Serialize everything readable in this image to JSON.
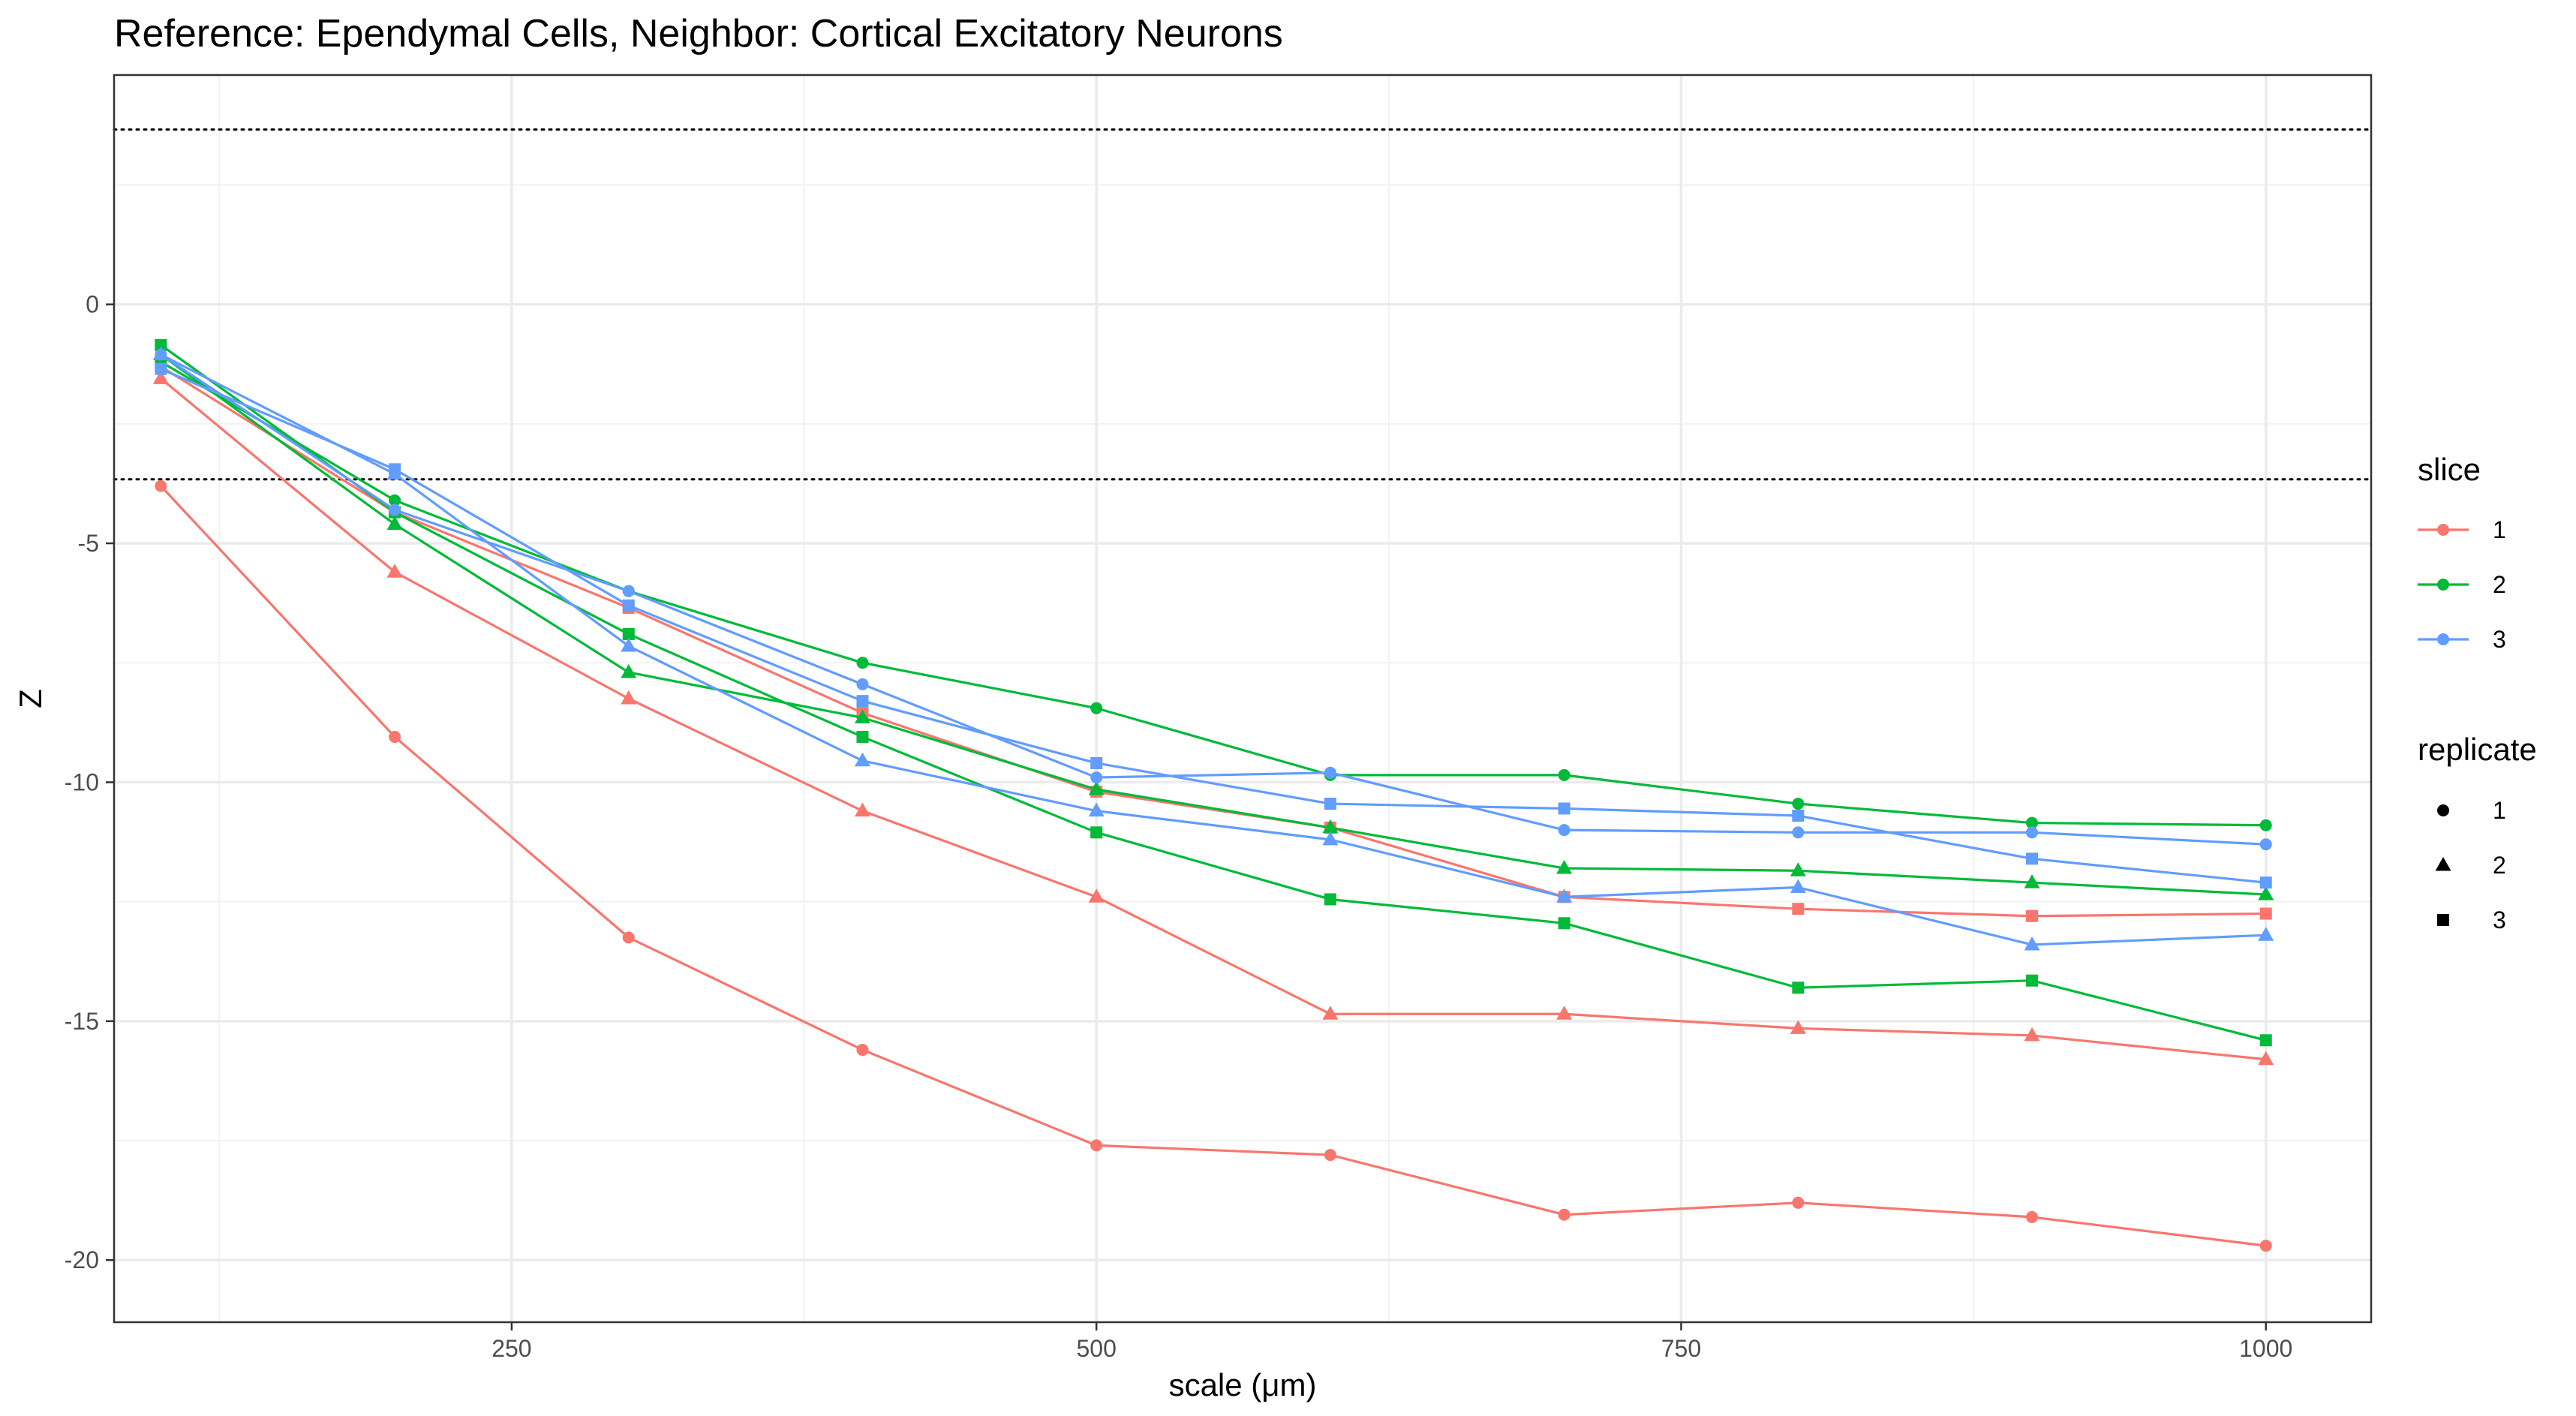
{
  "chart_data": {
    "type": "line",
    "title": "Reference: Ependymal Cells, Neighbor: Cortical Excitatory Neurons",
    "xlabel": "scale (μm)",
    "ylabel": "Z",
    "xlim": [
      80,
      1045
    ],
    "ylim": [
      -21.3,
      4.8
    ],
    "x_ticks": [
      250,
      500,
      750,
      1000
    ],
    "x_tick_labels": [
      "250",
      "500",
      "750",
      "1000"
    ],
    "y_ticks": [
      0,
      -5,
      -10,
      -15,
      -20
    ],
    "y_tick_labels": [
      "0",
      "-5",
      "-10",
      "-15",
      "-20"
    ],
    "reference_lines": [
      3.66,
      -3.66
    ],
    "grid": true,
    "legend_position": "right",
    "legends": [
      {
        "title": "slice",
        "items": [
          {
            "label": "1",
            "color": "#F8766D"
          },
          {
            "label": "2",
            "color": "#00BA38"
          },
          {
            "label": "3",
            "color": "#619CFF"
          }
        ]
      },
      {
        "title": "replicate",
        "items": [
          {
            "label": "1",
            "shape": "circle"
          },
          {
            "label": "2",
            "shape": "triangle"
          },
          {
            "label": "3",
            "shape": "square"
          }
        ]
      }
    ],
    "x": [
      100,
      200,
      300,
      400,
      500,
      600,
      700,
      800,
      900,
      1000
    ],
    "series": [
      {
        "slice": "1",
        "replicate": "1",
        "color": "#F8766D",
        "shape": "circle",
        "values": [
          -3.8,
          -9.05,
          -13.25,
          -15.6,
          -17.6,
          -17.8,
          -19.05,
          -18.8,
          -19.1,
          -19.7
        ]
      },
      {
        "slice": "1",
        "replicate": "2",
        "color": "#F8766D",
        "shape": "triangle",
        "values": [
          -1.55,
          -5.6,
          -8.25,
          -10.6,
          -12.4,
          -14.85,
          -14.85,
          -15.15,
          -15.3,
          -15.8
        ]
      },
      {
        "slice": "1",
        "replicate": "3",
        "color": "#F8766D",
        "shape": "square",
        "values": [
          -1.3,
          -4.35,
          -6.35,
          -8.55,
          -10.2,
          -10.95,
          -12.4,
          -12.65,
          -12.8,
          -12.75
        ]
      },
      {
        "slice": "2",
        "replicate": "1",
        "color": "#00BA38",
        "shape": "circle",
        "values": [
          -1.2,
          -4.1,
          -6.0,
          -7.5,
          -8.45,
          -9.85,
          -9.85,
          -10.45,
          -10.85,
          -10.9
        ]
      },
      {
        "slice": "2",
        "replicate": "2",
        "color": "#00BA38",
        "shape": "triangle",
        "values": [
          -1.05,
          -4.6,
          -7.7,
          -8.65,
          -10.15,
          -10.95,
          -11.8,
          -11.85,
          -12.1,
          -12.35
        ]
      },
      {
        "slice": "2",
        "replicate": "3",
        "color": "#00BA38",
        "shape": "square",
        "values": [
          -0.85,
          -4.35,
          -6.9,
          -9.05,
          -11.05,
          -12.45,
          -12.95,
          -14.3,
          -14.15,
          -15.4
        ]
      },
      {
        "slice": "3",
        "replicate": "1",
        "color": "#619CFF",
        "shape": "circle",
        "values": [
          -1.05,
          -4.3,
          -6.0,
          -7.95,
          -9.9,
          -9.8,
          -11.0,
          -11.05,
          -11.05,
          -11.3
        ]
      },
      {
        "slice": "3",
        "replicate": "2",
        "color": "#619CFF",
        "shape": "triangle",
        "values": [
          -1.05,
          -3.55,
          -7.15,
          -9.55,
          -10.6,
          -11.2,
          -12.4,
          -12.2,
          -13.4,
          -13.2
        ]
      },
      {
        "slice": "3",
        "replicate": "3",
        "color": "#619CFF",
        "shape": "square",
        "values": [
          -1.35,
          -3.45,
          -6.3,
          -8.3,
          -9.6,
          -10.45,
          -10.55,
          -10.7,
          -11.6,
          -12.1
        ]
      }
    ]
  }
}
